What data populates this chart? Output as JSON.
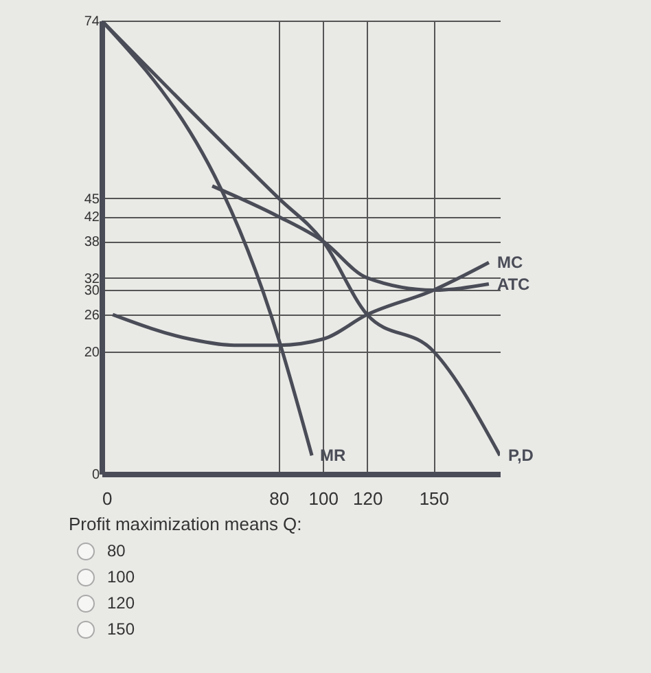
{
  "chart_data": {
    "type": "line",
    "xlim": [
      0,
      180
    ],
    "ylim": [
      0,
      74
    ],
    "xticks": [
      0,
      80,
      100,
      120,
      150
    ],
    "yticks": [
      0,
      20,
      26,
      30,
      32,
      38,
      42,
      45,
      74
    ],
    "grid": true,
    "legend": false,
    "marker": "none",
    "line_style": "solid",
    "series": [
      {
        "name": "P,D",
        "color": "#4a4d57",
        "x": [
          0,
          80,
          100,
          120,
          150,
          180
        ],
        "values": [
          74,
          45,
          38,
          26,
          20,
          3
        ]
      },
      {
        "name": "MR",
        "color": "#4a4d57",
        "x": [
          0,
          80,
          95
        ],
        "values": [
          74,
          22,
          3
        ]
      },
      {
        "name": "MC",
        "color": "#4a4d57",
        "x": [
          5,
          40,
          60,
          80,
          100,
          120,
          150,
          175
        ],
        "values": [
          26,
          22,
          21,
          21,
          22,
          26,
          30,
          34.5
        ]
      },
      {
        "name": "ATC",
        "color": "#4a4d57",
        "x": [
          50,
          80,
          100,
          120,
          150,
          175
        ],
        "values": [
          47,
          42,
          38,
          32,
          30,
          31
        ]
      }
    ],
    "annotations": [
      "Profit maximization means Q:",
      "80",
      "100",
      "120",
      "150"
    ]
  }
}
